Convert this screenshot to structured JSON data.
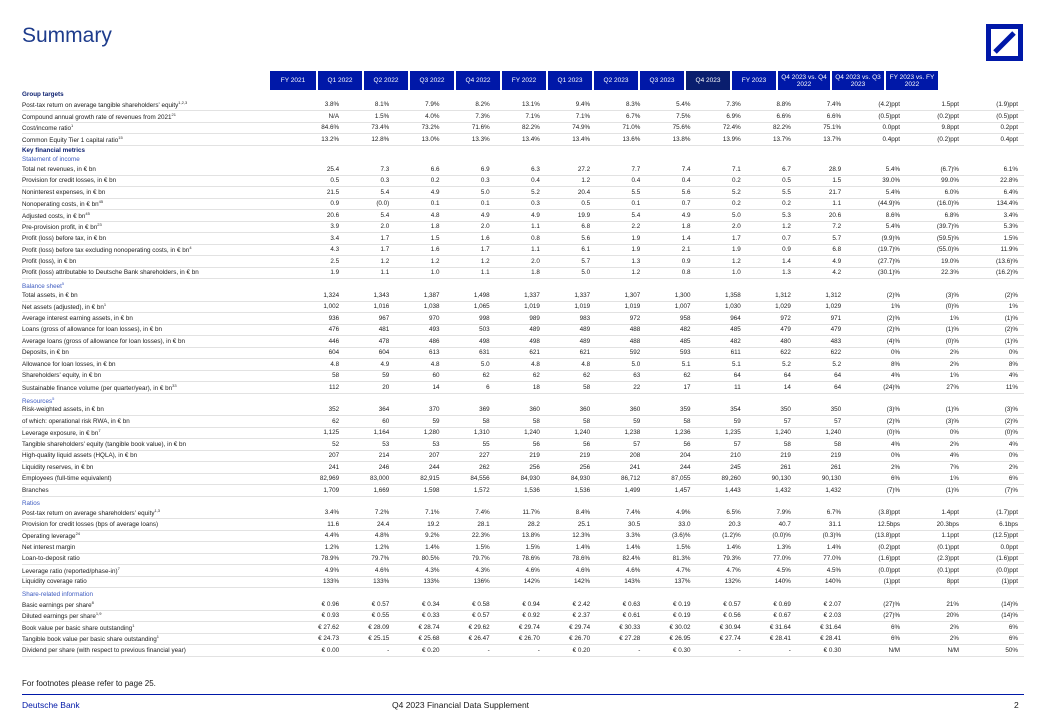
{
  "page": {
    "title": "Summary"
  },
  "header": [
    "FY 2021",
    "Q1 2022",
    "Q2 2022",
    "Q3 2022",
    "Q4 2022",
    "FY 2022",
    "Q1 2023",
    "Q2 2023",
    "Q3 2023",
    "Q4 2023",
    "FY 2023",
    "Q4 2023 vs. Q4 2022",
    "Q4 2023 vs. Q3 2023",
    "FY 2023 vs. FY 2022"
  ],
  "rows": [
    {
      "t": "sec",
      "label": "Group targets"
    },
    {
      "label": "Post-tax return on average tangible shareholders' equity",
      "sup": "1,2,3",
      "v": [
        "3.8%",
        "8.1%",
        "7.9%",
        "8.2%",
        "13.1%",
        "9.4%",
        "8.3%",
        "5.4%",
        "7.3%",
        "8.8%",
        "7.4%",
        "(4.2)ppt",
        "1.5ppt",
        "(1.9)ppt"
      ]
    },
    {
      "label": "Compound annual growth rate of revenues from 2021",
      "sup": "21",
      "v": [
        "N/A",
        "1.5%",
        "4.0%",
        "7.3%",
        "7.1%",
        "7.1%",
        "6.7%",
        "7.5%",
        "6.9%",
        "6.6%",
        "6.6%",
        "(0.5)ppt",
        "(0.2)ppt",
        "(0.5)ppt"
      ]
    },
    {
      "label": "Cost/income ratio",
      "sup": "1",
      "v": [
        "84.6%",
        "73.4%",
        "73.2%",
        "71.6%",
        "82.2%",
        "74.9%",
        "71.0%",
        "75.6%",
        "72.4%",
        "82.2%",
        "75.1%",
        "0.0ppt",
        "9.8ppt",
        "0.2ppt"
      ]
    },
    {
      "label": "Common Equity Tier 1 capital ratio",
      "sup": "15",
      "v": [
        "13.2%",
        "12.8%",
        "13.0%",
        "13.3%",
        "13.4%",
        "13.4%",
        "13.6%",
        "13.8%",
        "13.9%",
        "13.7%",
        "13.7%",
        "0.4ppt",
        "(0.2)ppt",
        "0.4ppt"
      ]
    },
    {
      "t": "sec",
      "label": "Key financial metrics"
    },
    {
      "t": "sub",
      "label": "Statement of income"
    },
    {
      "label": "Total net revenues, in € bn",
      "v": [
        "25.4",
        "7.3",
        "6.6",
        "6.9",
        "6.3",
        "27.2",
        "7.7",
        "7.4",
        "7.1",
        "6.7",
        "28.9",
        "5.4%",
        "(6.7)%",
        "6.1%"
      ]
    },
    {
      "label": "Provision for credit losses, in € bn",
      "v": [
        "0.5",
        "0.3",
        "0.2",
        "0.3",
        "0.4",
        "1.2",
        "0.4",
        "0.4",
        "0.2",
        "0.5",
        "1.5",
        "39.0%",
        "99.0%",
        "22.8%"
      ]
    },
    {
      "label": "Noninterest expenses, in € bn",
      "v": [
        "21.5",
        "5.4",
        "4.9",
        "5.0",
        "5.2",
        "20.4",
        "5.5",
        "5.6",
        "5.2",
        "5.5",
        "21.7",
        "5.4%",
        "6.0%",
        "6.4%"
      ]
    },
    {
      "label": "Nonoperating costs, in € bn",
      "sup": "45",
      "v": [
        "0.9",
        "(0.0)",
        "0.1",
        "0.1",
        "0.3",
        "0.5",
        "0.1",
        "0.7",
        "0.2",
        "0.2",
        "1.1",
        "(44.9)%",
        "(16.0)%",
        "134.4%"
      ]
    },
    {
      "label": "Adjusted costs, in € bn",
      "sup": "45",
      "v": [
        "20.6",
        "5.4",
        "4.8",
        "4.9",
        "4.9",
        "19.9",
        "5.4",
        "4.9",
        "5.0",
        "5.3",
        "20.6",
        "8.6%",
        "6.8%",
        "3.4%"
      ]
    },
    {
      "label": "Pre-provision profit, in € bn",
      "sup": "23",
      "v": [
        "3.9",
        "2.0",
        "1.8",
        "2.0",
        "1.1",
        "6.8",
        "2.2",
        "1.8",
        "2.0",
        "1.2",
        "7.2",
        "5.4%",
        "(39.7)%",
        "5.3%"
      ]
    },
    {
      "label": "Profit (loss) before tax, in € bn",
      "v": [
        "3.4",
        "1.7",
        "1.5",
        "1.6",
        "0.8",
        "5.6",
        "1.9",
        "1.4",
        "1.7",
        "0.7",
        "5.7",
        "(9.9)%",
        "(59.5)%",
        "1.5%"
      ]
    },
    {
      "label": "Profit (loss) before tax excluding nonoperating costs, in € bn",
      "sup": "4",
      "v": [
        "4.3",
        "1.7",
        "1.6",
        "1.7",
        "1.1",
        "6.1",
        "1.9",
        "2.1",
        "1.9",
        "0.9",
        "6.8",
        "(19.7)%",
        "(55.0)%",
        "11.9%"
      ]
    },
    {
      "label": "Profit (loss), in € bn",
      "v": [
        "2.5",
        "1.2",
        "1.2",
        "1.2",
        "2.0",
        "5.7",
        "1.3",
        "0.9",
        "1.2",
        "1.4",
        "4.9",
        "(27.7)%",
        "19.0%",
        "(13.6)%"
      ]
    },
    {
      "label": "Profit (loss) attributable to Deutsche Bank shareholders, in € bn",
      "v": [
        "1.9",
        "1.1",
        "1.0",
        "1.1",
        "1.8",
        "5.0",
        "1.2",
        "0.8",
        "1.0",
        "1.3",
        "4.2",
        "(30.1)%",
        "22.3%",
        "(16.2)%"
      ]
    },
    {
      "t": "gap"
    },
    {
      "t": "sub",
      "label": "Balance sheet",
      "sup": "5"
    },
    {
      "label": "Total assets, in € bn",
      "v": [
        "1,324",
        "1,343",
        "1,387",
        "1,498",
        "1,337",
        "1,337",
        "1,307",
        "1,300",
        "1,358",
        "1,312",
        "1,312",
        "(2)%",
        "(3)%",
        "(2)%"
      ]
    },
    {
      "label": "Net assets (adjusted), in € bn",
      "sup": "1",
      "v": [
        "1,002",
        "1,016",
        "1,038",
        "1,065",
        "1,019",
        "1,019",
        "1,019",
        "1,007",
        "1,030",
        "1,029",
        "1,029",
        "1%",
        "(0)%",
        "1%"
      ]
    },
    {
      "label": "Average interest earning assets, in € bn",
      "v": [
        "936",
        "967",
        "970",
        "998",
        "989",
        "983",
        "972",
        "958",
        "964",
        "972",
        "971",
        "(2)%",
        "1%",
        "(1)%"
      ]
    },
    {
      "label": "Loans (gross of allowance for loan losses), in € bn",
      "v": [
        "476",
        "481",
        "493",
        "503",
        "489",
        "489",
        "488",
        "482",
        "485",
        "479",
        "479",
        "(2)%",
        "(1)%",
        "(2)%"
      ]
    },
    {
      "label": "Average loans (gross of allowance for loan losses), in € bn",
      "v": [
        "446",
        "478",
        "486",
        "498",
        "498",
        "489",
        "488",
        "485",
        "482",
        "480",
        "483",
        "(4)%",
        "(0)%",
        "(1)%"
      ]
    },
    {
      "label": "Deposits, in € bn",
      "v": [
        "604",
        "604",
        "613",
        "631",
        "621",
        "621",
        "592",
        "593",
        "611",
        "622",
        "622",
        "0%",
        "2%",
        "0%"
      ]
    },
    {
      "label": "Allowance for loan losses, in € bn",
      "v": [
        "4.8",
        "4.9",
        "4.8",
        "5.0",
        "4.8",
        "4.8",
        "5.0",
        "5.1",
        "5.1",
        "5.2",
        "5.2",
        "8%",
        "2%",
        "8%"
      ]
    },
    {
      "label": "Shareholders' equity, in € bn",
      "v": [
        "58",
        "59",
        "60",
        "62",
        "62",
        "62",
        "63",
        "62",
        "64",
        "64",
        "64",
        "4%",
        "1%",
        "4%"
      ]
    },
    {
      "label": "Sustainable finance volume (per quarter/year), in € bn",
      "sup": "33",
      "v": [
        "112",
        "20",
        "14",
        "6",
        "18",
        "58",
        "22",
        "17",
        "11",
        "14",
        "64",
        "(24)%",
        "27%",
        "11%"
      ]
    },
    {
      "t": "gap"
    },
    {
      "t": "sub",
      "label": "Resources",
      "sup": "5"
    },
    {
      "label": "Risk-weighted assets, in € bn",
      "v": [
        "352",
        "364",
        "370",
        "369",
        "360",
        "360",
        "360",
        "359",
        "354",
        "350",
        "350",
        "(3)%",
        "(1)%",
        "(3)%"
      ]
    },
    {
      "label": "  of which: operational risk RWA, in € bn",
      "v": [
        "62",
        "60",
        "59",
        "58",
        "58",
        "58",
        "59",
        "58",
        "59",
        "57",
        "57",
        "(2)%",
        "(3)%",
        "(2)%"
      ]
    },
    {
      "label": "Leverage exposure, in € bn",
      "sup": "7",
      "v": [
        "1,125",
        "1,164",
        "1,280",
        "1,310",
        "1,240",
        "1,240",
        "1,238",
        "1,236",
        "1,235",
        "1,240",
        "1,240",
        "(0)%",
        "0%",
        "(0)%"
      ]
    },
    {
      "label": "Tangible shareholders' equity (tangible book value), in € bn",
      "v": [
        "52",
        "53",
        "53",
        "55",
        "56",
        "56",
        "57",
        "56",
        "57",
        "58",
        "58",
        "4%",
        "2%",
        "4%"
      ]
    },
    {
      "label": "High-quality liquid assets (HQLA), in € bn",
      "v": [
        "207",
        "214",
        "207",
        "227",
        "219",
        "219",
        "208",
        "204",
        "210",
        "219",
        "219",
        "0%",
        "4%",
        "0%"
      ]
    },
    {
      "label": "Liquidity reserves, in € bn",
      "v": [
        "241",
        "246",
        "244",
        "262",
        "256",
        "256",
        "241",
        "244",
        "245",
        "261",
        "261",
        "2%",
        "7%",
        "2%"
      ]
    },
    {
      "label": "Employees (full-time equivalent)",
      "v": [
        "82,969",
        "83,000",
        "82,915",
        "84,556",
        "84,930",
        "84,930",
        "86,712",
        "87,055",
        "89,260",
        "90,130",
        "90,130",
        "6%",
        "1%",
        "6%"
      ]
    },
    {
      "label": "Branches",
      "v": [
        "1,709",
        "1,669",
        "1,598",
        "1,572",
        "1,536",
        "1,536",
        "1,499",
        "1,457",
        "1,443",
        "1,432",
        "1,432",
        "(7)%",
        "(1)%",
        "(7)%"
      ]
    },
    {
      "t": "gap"
    },
    {
      "t": "sub",
      "label": "Ratios"
    },
    {
      "label": "Post-tax return on average shareholders' equity",
      "sup": "1,3",
      "v": [
        "3.4%",
        "7.2%",
        "7.1%",
        "7.4%",
        "11.7%",
        "8.4%",
        "7.4%",
        "4.9%",
        "6.5%",
        "7.9%",
        "6.7%",
        "(3.8)ppt",
        "1.4ppt",
        "(1.7)ppt"
      ]
    },
    {
      "label": "Provision for credit losses (bps of average loans)",
      "v": [
        "11.6",
        "24.4",
        "19.2",
        "28.1",
        "28.2",
        "25.1",
        "30.5",
        "33.0",
        "20.3",
        "40.7",
        "31.1",
        "12.5bps",
        "20.3bps",
        "6.1bps"
      ]
    },
    {
      "label": "Operating leverage",
      "sup": "24",
      "v": [
        "4.4%",
        "4.8%",
        "9.2%",
        "22.3%",
        "13.8%",
        "12.3%",
        "3.3%",
        "(3.6)%",
        "(1.2)%",
        "(0.0)%",
        "(0.3)%",
        "(13.8)ppt",
        "1.1ppt",
        "(12.5)ppt"
      ]
    },
    {
      "label": "Net interest margin",
      "v": [
        "1.2%",
        "1.2%",
        "1.4%",
        "1.5%",
        "1.5%",
        "1.4%",
        "1.4%",
        "1.5%",
        "1.4%",
        "1.3%",
        "1.4%",
        "(0.2)ppt",
        "(0.1)ppt",
        "0.0ppt"
      ]
    },
    {
      "label": "Loan-to-deposit ratio",
      "v": [
        "78.9%",
        "79.7%",
        "80.5%",
        "79.7%",
        "78.6%",
        "78.6%",
        "82.4%",
        "81.3%",
        "79.3%",
        "77.0%",
        "77.0%",
        "(1.6)ppt",
        "(2.3)ppt",
        "(1.6)ppt"
      ]
    },
    {
      "label": "Leverage ratio (reported/phase-in)",
      "sup": "7",
      "v": [
        "4.9%",
        "4.6%",
        "4.3%",
        "4.3%",
        "4.6%",
        "4.6%",
        "4.6%",
        "4.7%",
        "4.7%",
        "4.5%",
        "4.5%",
        "(0.0)ppt",
        "(0.1)ppt",
        "(0.0)ppt"
      ]
    },
    {
      "label": "Liquidity coverage ratio",
      "v": [
        "133%",
        "133%",
        "133%",
        "136%",
        "142%",
        "142%",
        "143%",
        "137%",
        "132%",
        "140%",
        "140%",
        "(1)ppt",
        "8ppt",
        "(1)ppt"
      ]
    },
    {
      "t": "gap"
    },
    {
      "t": "sub",
      "label": "Share-related information"
    },
    {
      "label": "Basic earnings per share",
      "sup": "8",
      "v": [
        "€ 0.96",
        "€ 0.57",
        "€ 0.34",
        "€ 0.58",
        "€ 0.94",
        "€ 2.42",
        "€ 0.63",
        "€ 0.19",
        "€ 0.57",
        "€ 0.69",
        "€ 2.07",
        "(27)%",
        "21%",
        "(14)%"
      ]
    },
    {
      "label": "Diluted earnings per share",
      "sup": "1,9",
      "v": [
        "€ 0.93",
        "€ 0.55",
        "€ 0.33",
        "€ 0.57",
        "€ 0.92",
        "€ 2.37",
        "€ 0.61",
        "€ 0.19",
        "€ 0.56",
        "€ 0.67",
        "€ 2.03",
        "(27)%",
        "20%",
        "(14)%"
      ]
    },
    {
      "label": "Book value per basic share outstanding",
      "sup": "1",
      "v": [
        "€ 27.62",
        "€ 28.09",
        "€ 28.74",
        "€ 29.62",
        "€ 29.74",
        "€ 29.74",
        "€ 30.33",
        "€ 30.02",
        "€ 30.94",
        "€ 31.64",
        "€ 31.64",
        "6%",
        "2%",
        "6%"
      ]
    },
    {
      "label": "Tangible book value per basic share outstanding",
      "sup": "1",
      "v": [
        "€ 24.73",
        "€ 25.15",
        "€ 25.68",
        "€ 26.47",
        "€ 26.70",
        "€ 26.70",
        "€ 27.28",
        "€ 26.95",
        "€ 27.74",
        "€ 28.41",
        "€ 28.41",
        "6%",
        "2%",
        "6%"
      ]
    },
    {
      "label": "Dividend per share (with respect to previous financial year)",
      "v": [
        "€ 0.00",
        "-",
        "€ 0.20",
        "-",
        "-",
        "€ 0.20",
        "-",
        "€ 0.30",
        "-",
        "-",
        "€ 0.30",
        "N/M",
        "N/M",
        "50%"
      ]
    }
  ],
  "footer": {
    "note": "For footnotes please refer to page 25.",
    "brand": "Deutsche Bank",
    "doc": "Q4 2023 Financial Data Supplement",
    "page": "2"
  }
}
